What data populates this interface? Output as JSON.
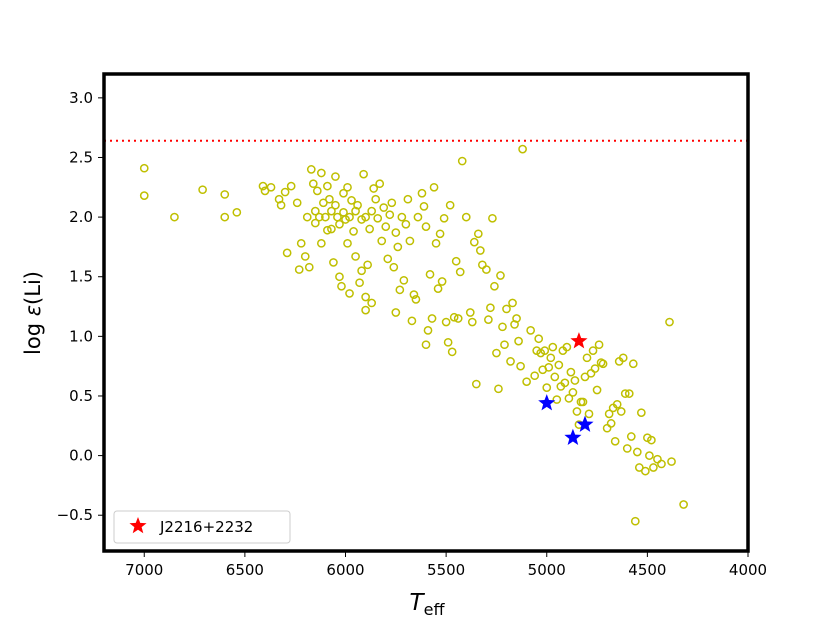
{
  "chart_data": {
    "type": "scatter",
    "xlabel": {
      "main": "T",
      "sub": "eff"
    },
    "ylabel": {
      "prefix": "log ",
      "symbol": "ε",
      "suffix": "(Li)"
    },
    "xlim": [
      7200,
      4000
    ],
    "ylim": [
      -0.8,
      3.2
    ],
    "x_inverted": true,
    "xticks": [
      7000,
      6500,
      6000,
      5500,
      5000,
      4500,
      4000
    ],
    "yticks": [
      -0.5,
      0.0,
      0.5,
      1.0,
      1.5,
      2.0,
      2.5,
      3.0
    ],
    "xtick_labels": [
      "7000",
      "6500",
      "6000",
      "5500",
      "5000",
      "4500",
      "4000"
    ],
    "ytick_labels": [
      "−0.5",
      "0.0",
      "0.5",
      "1.0",
      "1.5",
      "2.0",
      "2.5",
      "3.0"
    ],
    "grid": false,
    "legend_position": "lower-left",
    "reference_line": {
      "y": 2.64,
      "style": "dotted",
      "color": "#ff0000"
    },
    "series": [
      {
        "marker": "open-circle",
        "color": "#bfbf00",
        "points": [
          [
            7000,
            2.41
          ],
          [
            7000,
            2.18
          ],
          [
            6850,
            2.0
          ],
          [
            6710,
            2.23
          ],
          [
            6600,
            2.19
          ],
          [
            6600,
            2.0
          ],
          [
            6540,
            2.04
          ],
          [
            6410,
            2.26
          ],
          [
            6400,
            2.22
          ],
          [
            6370,
            2.25
          ],
          [
            6330,
            2.15
          ],
          [
            6320,
            2.1
          ],
          [
            6300,
            2.21
          ],
          [
            6290,
            1.7
          ],
          [
            6270,
            2.26
          ],
          [
            6240,
            2.12
          ],
          [
            6230,
            1.56
          ],
          [
            6220,
            1.78
          ],
          [
            6200,
            1.67
          ],
          [
            6190,
            2.0
          ],
          [
            6180,
            1.58
          ],
          [
            6170,
            2.4
          ],
          [
            6160,
            2.28
          ],
          [
            6150,
            2.05
          ],
          [
            6150,
            1.95
          ],
          [
            6140,
            2.22
          ],
          [
            6130,
            2.0
          ],
          [
            6120,
            1.78
          ],
          [
            6120,
            2.37
          ],
          [
            6110,
            2.12
          ],
          [
            6100,
            2.0
          ],
          [
            6090,
            2.26
          ],
          [
            6090,
            1.89
          ],
          [
            6080,
            2.15
          ],
          [
            6070,
            2.05
          ],
          [
            6070,
            1.9
          ],
          [
            6060,
            1.62
          ],
          [
            6050,
            2.34
          ],
          [
            6050,
            2.1
          ],
          [
            6040,
            2.0
          ],
          [
            6030,
            1.5
          ],
          [
            6030,
            1.94
          ],
          [
            6020,
            1.42
          ],
          [
            6010,
            2.2
          ],
          [
            6010,
            2.04
          ],
          [
            6000,
            1.98
          ],
          [
            5990,
            1.78
          ],
          [
            5990,
            2.25
          ],
          [
            5980,
            2.0
          ],
          [
            5980,
            1.36
          ],
          [
            5970,
            2.14
          ],
          [
            5960,
            1.88
          ],
          [
            5950,
            2.05
          ],
          [
            5950,
            1.67
          ],
          [
            5940,
            2.1
          ],
          [
            5930,
            1.45
          ],
          [
            5920,
            1.55
          ],
          [
            5920,
            1.98
          ],
          [
            5910,
            2.36
          ],
          [
            5900,
            2.0
          ],
          [
            5900,
            1.22
          ],
          [
            5890,
            1.6
          ],
          [
            5880,
            1.9
          ],
          [
            5870,
            2.05
          ],
          [
            5870,
            1.28
          ],
          [
            5860,
            2.24
          ],
          [
            5850,
            2.15
          ],
          [
            5840,
            1.99
          ],
          [
            5830,
            2.28
          ],
          [
            5820,
            1.8
          ],
          [
            5810,
            2.08
          ],
          [
            5800,
            1.92
          ],
          [
            5790,
            1.65
          ],
          [
            5780,
            2.02
          ],
          [
            5770,
            2.12
          ],
          [
            5760,
            1.58
          ],
          [
            5750,
            1.87
          ],
          [
            5740,
            1.75
          ],
          [
            5730,
            1.39
          ],
          [
            5720,
            2.0
          ],
          [
            5710,
            1.47
          ],
          [
            5700,
            1.94
          ],
          [
            5690,
            2.15
          ],
          [
            5680,
            1.8
          ],
          [
            5670,
            1.13
          ],
          [
            5660,
            1.35
          ],
          [
            5650,
            1.31
          ],
          [
            5640,
            2.0
          ],
          [
            5620,
            2.2
          ],
          [
            5610,
            2.09
          ],
          [
            5600,
            1.92
          ],
          [
            5590,
            1.05
          ],
          [
            5580,
            1.52
          ],
          [
            5570,
            1.15
          ],
          [
            5560,
            2.25
          ],
          [
            5550,
            1.78
          ],
          [
            5540,
            1.4
          ],
          [
            5530,
            1.86
          ],
          [
            5520,
            1.46
          ],
          [
            5510,
            1.99
          ],
          [
            5500,
            1.12
          ],
          [
            5490,
            0.95
          ],
          [
            5480,
            2.1
          ],
          [
            5470,
            0.87
          ],
          [
            5460,
            1.16
          ],
          [
            5450,
            1.63
          ],
          [
            5440,
            1.15
          ],
          [
            5430,
            1.54
          ],
          [
            5420,
            2.47
          ],
          [
            5400,
            2.0
          ],
          [
            5380,
            1.2
          ],
          [
            5370,
            1.12
          ],
          [
            5360,
            1.79
          ],
          [
            5350,
            0.6
          ],
          [
            5340,
            1.86
          ],
          [
            5330,
            1.72
          ],
          [
            5320,
            1.6
          ],
          [
            5300,
            1.56
          ],
          [
            5290,
            1.14
          ],
          [
            5280,
            1.24
          ],
          [
            5270,
            1.99
          ],
          [
            5260,
            1.42
          ],
          [
            5250,
            0.86
          ],
          [
            5240,
            0.56
          ],
          [
            5230,
            1.51
          ],
          [
            5220,
            1.08
          ],
          [
            5210,
            0.93
          ],
          [
            5200,
            1.23
          ],
          [
            5180,
            0.79
          ],
          [
            5170,
            1.28
          ],
          [
            5160,
            1.1
          ],
          [
            5150,
            1.15
          ],
          [
            5140,
            0.96
          ],
          [
            5130,
            0.75
          ],
          [
            5120,
            2.57
          ],
          [
            5100,
            0.62
          ],
          [
            5080,
            1.05
          ],
          [
            5060,
            0.67
          ],
          [
            5050,
            0.88
          ],
          [
            5040,
            0.98
          ],
          [
            5030,
            0.86
          ],
          [
            5020,
            0.72
          ],
          [
            5010,
            0.88
          ],
          [
            5000,
            0.57
          ],
          [
            4990,
            0.74
          ],
          [
            4980,
            0.82
          ],
          [
            4970,
            0.91
          ],
          [
            4960,
            0.66
          ],
          [
            4950,
            0.47
          ],
          [
            4940,
            0.76
          ],
          [
            4930,
            0.58
          ],
          [
            4920,
            0.88
          ],
          [
            4910,
            0.61
          ],
          [
            4900,
            0.91
          ],
          [
            4890,
            0.48
          ],
          [
            4880,
            0.7
          ],
          [
            4870,
            0.53
          ],
          [
            4860,
            0.63
          ],
          [
            4850,
            0.37
          ],
          [
            4840,
            0.26
          ],
          [
            4830,
            0.45
          ],
          [
            4820,
            0.45
          ],
          [
            4810,
            0.66
          ],
          [
            4800,
            0.82
          ],
          [
            4790,
            0.35
          ],
          [
            4780,
            0.69
          ],
          [
            4770,
            0.88
          ],
          [
            4760,
            0.73
          ],
          [
            4750,
            0.55
          ],
          [
            4740,
            0.93
          ],
          [
            4730,
            0.78
          ],
          [
            4720,
            0.77
          ],
          [
            4700,
            0.23
          ],
          [
            4690,
            0.35
          ],
          [
            4680,
            0.27
          ],
          [
            4670,
            0.4
          ],
          [
            4660,
            0.12
          ],
          [
            4650,
            0.43
          ],
          [
            4640,
            0.79
          ],
          [
            4630,
            0.37
          ],
          [
            4620,
            0.82
          ],
          [
            4610,
            0.52
          ],
          [
            4600,
            0.06
          ],
          [
            4590,
            0.52
          ],
          [
            4580,
            0.16
          ],
          [
            4570,
            0.77
          ],
          [
            4560,
            -0.55
          ],
          [
            4550,
            0.03
          ],
          [
            4540,
            -0.1
          ],
          [
            4530,
            0.36
          ],
          [
            4510,
            -0.13
          ],
          [
            4500,
            0.15
          ],
          [
            4490,
            0.0
          ],
          [
            4480,
            0.13
          ],
          [
            4470,
            -0.1
          ],
          [
            4450,
            -0.03
          ],
          [
            4430,
            -0.07
          ],
          [
            4390,
            1.12
          ],
          [
            4380,
            -0.05
          ],
          [
            4320,
            -0.41
          ],
          [
            5600,
            0.93
          ],
          [
            5750,
            1.2
          ],
          [
            5900,
            1.33
          ]
        ]
      },
      {
        "marker": "star",
        "color": "#ff0000",
        "name": "J2216+2232",
        "points": [
          [
            4840,
            0.96
          ]
        ]
      },
      {
        "marker": "star",
        "color": "#0000ff",
        "points": [
          [
            5000,
            0.44
          ],
          [
            4810,
            0.26
          ],
          [
            4870,
            0.15
          ]
        ]
      }
    ]
  },
  "legend": {
    "entries": [
      {
        "label": "J2216+2232",
        "color": "#ff0000",
        "marker": "star"
      }
    ]
  }
}
